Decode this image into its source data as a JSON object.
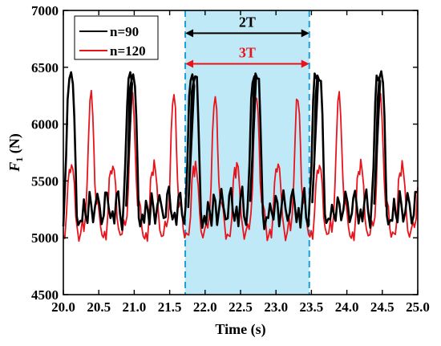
{
  "chart_data": {
    "type": "line",
    "xlabel": "Time (s)",
    "ylabel_main": "F",
    "ylabel_sub": "1",
    "ylabel_unit": " (N)",
    "xlim": [
      20.0,
      25.0
    ],
    "ylim": [
      4500,
      7000
    ],
    "x_ticks": [
      "20.0",
      "20.5",
      "21.0",
      "21.5",
      "22.0",
      "22.5",
      "23.0",
      "23.5",
      "24.0",
      "24.5",
      "25.0"
    ],
    "y_ticks": [
      "4500",
      "5000",
      "5500",
      "6000",
      "6500",
      "7000"
    ],
    "grid": false,
    "legend_position": "top-left",
    "highlight": {
      "x_start": 21.72,
      "x_end": 23.47,
      "color": "#bfe9f7",
      "edge_color": "#1aa0d8"
    },
    "annotations": [
      {
        "label": "2T",
        "x_start": 21.72,
        "x_end": 23.47,
        "y": 6800,
        "color": "#000000"
      },
      {
        "label": "3T",
        "x_start": 21.72,
        "x_end": 23.47,
        "y": 6530,
        "color": "#e8141c"
      }
    ],
    "series": [
      {
        "name": "n=90",
        "color": "#000000",
        "period": 0.875,
        "start": 20.0,
        "end": 25.0,
        "points": [
          [
            20.0,
            5130
          ],
          [
            20.012,
            5300
          ],
          [
            20.04,
            5700
          ],
          [
            20.06,
            6250
          ],
          [
            20.085,
            6400
          ],
          [
            20.11,
            6420
          ],
          [
            20.135,
            6380
          ],
          [
            20.155,
            6050
          ],
          [
            20.175,
            5560
          ],
          [
            20.19,
            5200
          ],
          [
            20.21,
            5100
          ],
          [
            20.24,
            5180
          ],
          [
            20.265,
            5150
          ],
          [
            20.29,
            5320
          ],
          [
            20.315,
            5220
          ],
          [
            20.34,
            5130
          ],
          [
            20.37,
            5380
          ],
          [
            20.395,
            5300
          ],
          [
            20.42,
            5130
          ],
          [
            20.45,
            5260
          ],
          [
            20.48,
            5400
          ],
          [
            20.51,
            5280
          ],
          [
            20.54,
            5150
          ],
          [
            20.57,
            5200
          ],
          [
            20.59,
            5380
          ],
          [
            20.615,
            5420
          ],
          [
            20.64,
            5260
          ],
          [
            20.665,
            5150
          ],
          [
            20.695,
            5250
          ],
          [
            20.72,
            5120
          ],
          [
            20.75,
            5350
          ],
          [
            20.775,
            5420
          ],
          [
            20.8,
            5200
          ],
          [
            20.83,
            5100
          ],
          [
            20.85,
            5300
          ],
          [
            20.875,
            5650
          ],
          [
            20.9,
            6200
          ],
          [
            20.92,
            6400
          ],
          [
            20.945,
            6420
          ],
          [
            20.97,
            6380
          ]
        ]
      },
      {
        "name": "n=120",
        "color": "#e8141c",
        "period": 0.583,
        "start": 20.0,
        "end": 25.0,
        "points": [
          [
            20.0,
            5050
          ],
          [
            20.02,
            5000
          ],
          [
            20.045,
            5200
          ],
          [
            20.065,
            5500
          ],
          [
            20.085,
            5600
          ],
          [
            20.1,
            5550
          ],
          [
            20.115,
            5660
          ],
          [
            20.135,
            5600
          ],
          [
            20.155,
            5450
          ],
          [
            20.175,
            5200
          ],
          [
            20.195,
            5080
          ],
          [
            20.22,
            5000
          ],
          [
            20.245,
            5050
          ],
          [
            20.27,
            5150
          ],
          [
            20.29,
            5080
          ],
          [
            20.315,
            5200
          ],
          [
            20.335,
            5450
          ],
          [
            20.355,
            5900
          ],
          [
            20.375,
            6200
          ],
          [
            20.395,
            6250
          ],
          [
            20.415,
            6100
          ],
          [
            20.43,
            5800
          ],
          [
            20.445,
            5500
          ],
          [
            20.465,
            5300
          ],
          [
            20.485,
            5320
          ],
          [
            20.505,
            5250
          ],
          [
            20.525,
            5100
          ],
          [
            20.545,
            5000
          ],
          [
            20.565,
            5020
          ],
          [
            20.583,
            5050
          ]
        ]
      }
    ]
  },
  "legend": {
    "items": [
      {
        "label": "n=90",
        "color": "#000000"
      },
      {
        "label": "n=120",
        "color": "#e8141c"
      }
    ]
  }
}
